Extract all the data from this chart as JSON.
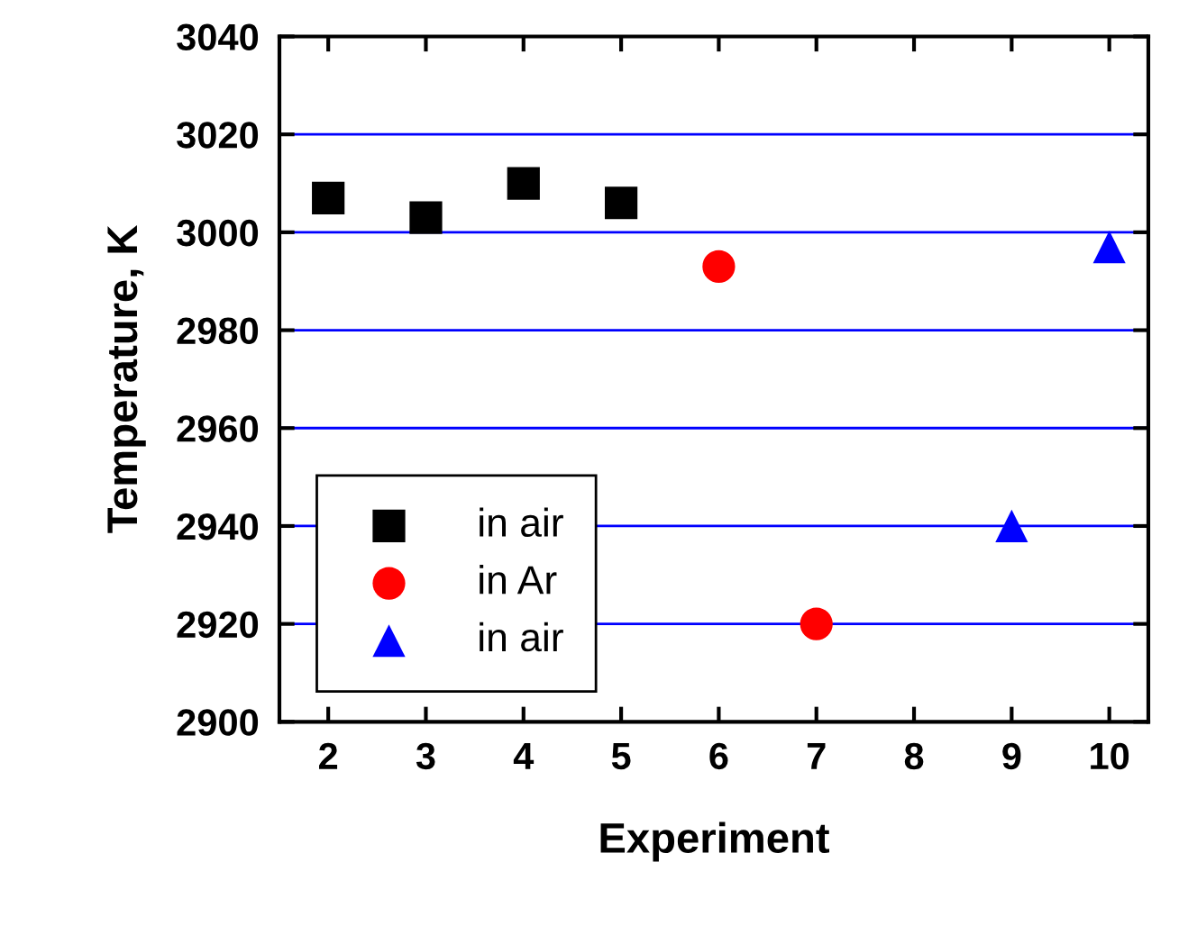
{
  "chart_data": {
    "type": "scatter",
    "xlabel": "Experiment",
    "ylabel": "Temperature, K",
    "xlim": [
      1.5,
      10.4
    ],
    "xticks": [
      2,
      3,
      4,
      5,
      6,
      7,
      8,
      9,
      10
    ],
    "ylim": [
      2900,
      3040
    ],
    "yticks": [
      2900,
      2920,
      2940,
      2960,
      2980,
      3000,
      3020,
      3040
    ],
    "grid": "y",
    "legend": "lower left",
    "series": [
      {
        "name": "in air",
        "color": "#000000",
        "marker": "square",
        "x": [
          2,
          3,
          4,
          5
        ],
        "values": [
          3007,
          3003,
          3010,
          3006
        ]
      },
      {
        "name": "in Ar",
        "color": "#ff0000",
        "marker": "circle",
        "x": [
          6,
          7
        ],
        "values": [
          2993,
          2920
        ]
      },
      {
        "name": "in air",
        "color": "#0000ff",
        "marker": "triangle",
        "x": [
          9,
          10
        ],
        "values": [
          2940,
          2997
        ]
      }
    ]
  }
}
